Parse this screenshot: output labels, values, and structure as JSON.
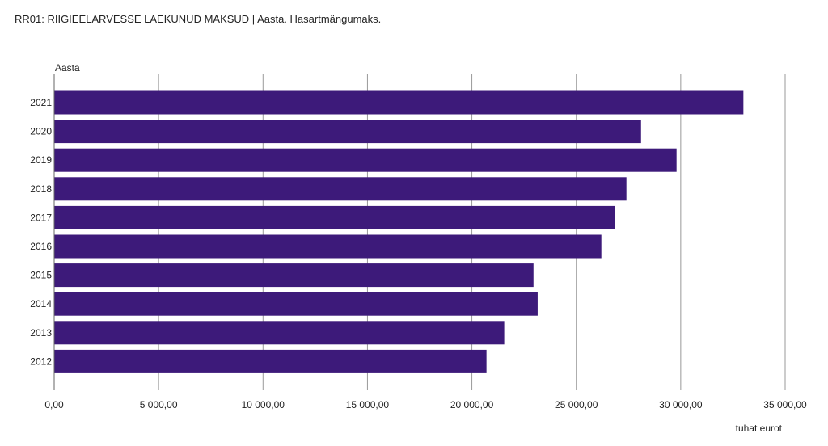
{
  "title": "RR01: RIIGIEELARVESSE LAEKUNUD MAKSUD | Aasta. Hasartmängumaks.",
  "chart_data": {
    "type": "bar",
    "orientation": "horizontal",
    "title": "RR01: RIIGIEELARVESSE LAEKUNUD MAKSUD | Aasta. Hasartmängumaks.",
    "ylabel": "Aasta",
    "xlabel": "tuhat eurot",
    "categories": [
      "2021",
      "2020",
      "2019",
      "2018",
      "2017",
      "2016",
      "2015",
      "2014",
      "2013",
      "2012"
    ],
    "series": [
      {
        "values": [
          33000,
          28100,
          29800,
          27400,
          26850,
          26200,
          22950,
          23150,
          21550,
          20700
        ]
      }
    ],
    "xlim": [
      0,
      35000
    ],
    "xticks": [
      0,
      5000,
      10000,
      15000,
      20000,
      25000,
      30000,
      35000
    ],
    "xtick_labels": [
      "0,00",
      "5 000,00",
      "10 000,00",
      "15 000,00",
      "20 000,00",
      "25 000,00",
      "30 000,00",
      "35 000,00"
    ],
    "grid": true,
    "bar_color": "#3d1a7a",
    "grid_color": "#999999"
  }
}
